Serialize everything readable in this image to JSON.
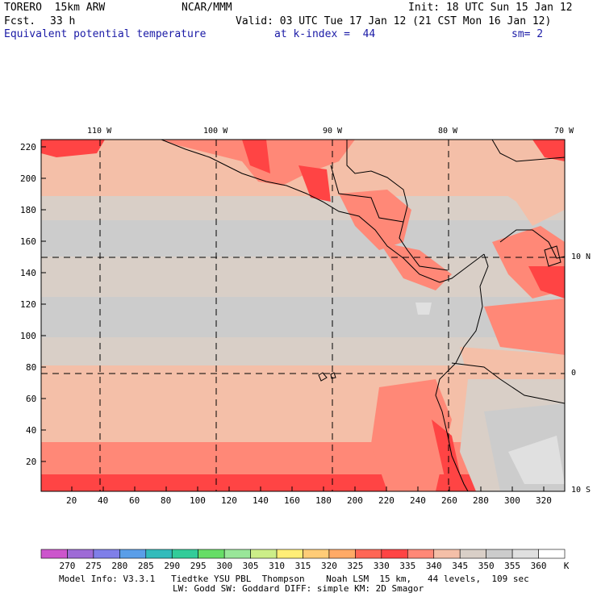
{
  "header": {
    "model": "TORERO  15km ARW",
    "org": "NCAR/MMM",
    "init": "Init: 18 UTC Sun 15 Jan 12",
    "fcst_label": "Fcst.",
    "fcst_value": "33 h",
    "valid": "Valid: 03 UTC Tue 17 Jan 12 (21 CST Mon 16 Jan 12)",
    "field": "Equivalent potential temperature",
    "level": "at k-index =  44",
    "smoothing": "sm= 2"
  },
  "map": {
    "lon_labels": [
      "110 W",
      "100 W",
      "90 W",
      "80 W",
      "70 W"
    ],
    "lat_labels": [
      "10 N",
      "0",
      "10 S"
    ],
    "y_ticks": [
      "220",
      "200",
      "180",
      "160",
      "140",
      "120",
      "100",
      "80",
      "60",
      "40",
      "20"
    ],
    "x_ticks": [
      "20",
      "40",
      "60",
      "80",
      "100",
      "120",
      "140",
      "160",
      "180",
      "200",
      "220",
      "240",
      "260",
      "280",
      "300",
      "320"
    ]
  },
  "colorbar": {
    "labels": [
      "270",
      "275",
      "280",
      "285",
      "290",
      "295",
      "300",
      "305",
      "310",
      "315",
      "320",
      "325",
      "330",
      "335",
      "340",
      "345",
      "350",
      "355",
      "360"
    ],
    "unit": "K",
    "colors": [
      "#cc55cc",
      "#9e6bd6",
      "#7f7fe8",
      "#5a9ee8",
      "#33bbbb",
      "#33cc99",
      "#66dd66",
      "#99e699",
      "#ccee88",
      "#ffee77",
      "#ffcc77",
      "#ffaa66",
      "#ff6655",
      "#ff4444",
      "#ff8877",
      "#f4bfa8",
      "#d9cfc7",
      "#cccccc",
      "#e0e0e0",
      "#ffffff"
    ]
  },
  "footer": {
    "line1": "Model Info: V3.3.1   Tiedtke YSU PBL  Thompson    Noah LSM  15 km,   44 levels,  109 sec",
    "line2": "LW: Godd SW: Goddard DIFF: simple KM: 2D Smagor"
  }
}
